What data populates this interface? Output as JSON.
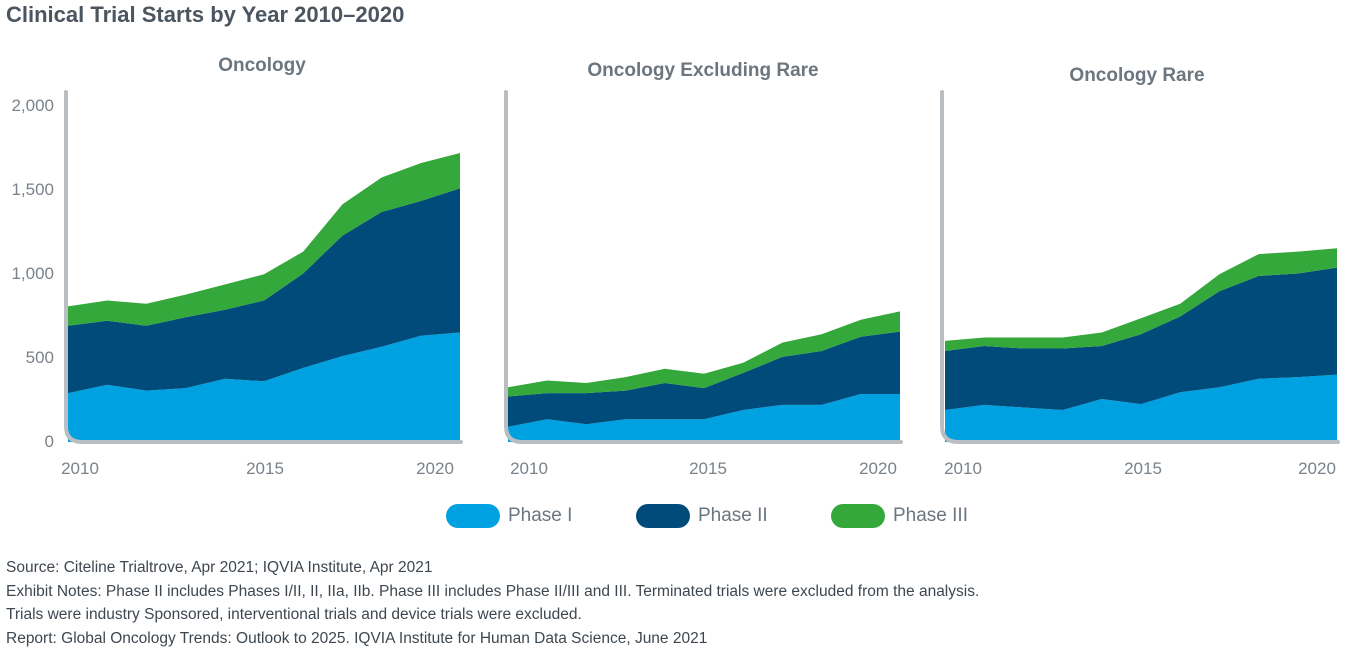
{
  "title": "Clinical Trial Starts by Year 2010–2020",
  "colors": {
    "phase1": "#00a1e0",
    "phase2": "#014b7b",
    "phase3": "#34a83a"
  },
  "legend": [
    {
      "label": "Phase I",
      "key": "phase1"
    },
    {
      "label": "Phase II",
      "key": "phase2"
    },
    {
      "label": "Phase III",
      "key": "phase3"
    }
  ],
  "y_tick_labels": [
    "2,000",
    "1,500",
    "1,000",
    "500",
    "0"
  ],
  "notes": {
    "source": "Source: Citeline Trialtrove, Apr 2021; IQVIA Institute, Apr 2021",
    "exhibit1": "Exhibit Notes: Phase II includes Phases I/II, II, IIa, IIb. Phase III includes Phase II/III and III. Terminated trials were excluded from the analysis.",
    "exhibit2": "Trials were industry Sponsored, interventional trials and device trials were excluded.",
    "report": "Report: Global Oncology Trends: Outlook to 2025. IQVIA Institute for Human Data Science, June 2021"
  },
  "chart_data": [
    {
      "type": "area",
      "stacked": true,
      "title": "Oncology",
      "x": [
        2010,
        2011,
        2012,
        2013,
        2014,
        2015,
        2016,
        2017,
        2018,
        2019,
        2020
      ],
      "x_ticks": [
        "2010",
        "2015",
        "2020"
      ],
      "ylim": [
        0,
        2000
      ],
      "y_ticks": [
        "2,000",
        "1,500",
        "1,000",
        "500",
        "0"
      ],
      "series": [
        {
          "name": "Phase I",
          "values": [
            290,
            340,
            305,
            320,
            375,
            360,
            440,
            510,
            565,
            630,
            650
          ]
        },
        {
          "name": "Phase II",
          "values": [
            400,
            380,
            385,
            420,
            410,
            480,
            560,
            715,
            800,
            800,
            855
          ]
        },
        {
          "name": "Phase III",
          "values": [
            115,
            120,
            130,
            135,
            150,
            155,
            130,
            185,
            205,
            225,
            210
          ]
        }
      ]
    },
    {
      "type": "area",
      "stacked": true,
      "title": "Oncology Excluding Rare",
      "x": [
        2010,
        2011,
        2012,
        2013,
        2014,
        2015,
        2016,
        2017,
        2018,
        2019,
        2020
      ],
      "x_ticks": [
        "2010",
        "2015",
        "2020"
      ],
      "ylim": [
        0,
        2000
      ],
      "y_ticks": [
        "2,000",
        "1,500",
        "1,000",
        "500",
        "0"
      ],
      "series": [
        {
          "name": "Phase I",
          "values": [
            90,
            135,
            105,
            135,
            135,
            135,
            190,
            220,
            220,
            285,
            285
          ]
        },
        {
          "name": "Phase II",
          "values": [
            180,
            155,
            185,
            170,
            215,
            185,
            220,
            285,
            320,
            340,
            370
          ]
        },
        {
          "name": "Phase III",
          "values": [
            55,
            75,
            60,
            80,
            85,
            85,
            60,
            85,
            100,
            100,
            120
          ]
        }
      ]
    },
    {
      "type": "area",
      "stacked": true,
      "title": "Oncology  Rare",
      "x": [
        2010,
        2011,
        2012,
        2013,
        2014,
        2015,
        2016,
        2017,
        2018,
        2019,
        2020
      ],
      "x_ticks": [
        "2010",
        "2015",
        "2020"
      ],
      "ylim": [
        0,
        2000
      ],
      "y_ticks": [
        "2,000",
        "1,500",
        "1,000",
        "500",
        "0"
      ],
      "series": [
        {
          "name": "Phase I",
          "values": [
            190,
            220,
            205,
            190,
            255,
            225,
            295,
            325,
            375,
            385,
            400
          ]
        },
        {
          "name": "Phase II",
          "values": [
            350,
            350,
            350,
            365,
            315,
            415,
            450,
            570,
            610,
            615,
            635
          ]
        },
        {
          "name": "Phase III",
          "values": [
            60,
            50,
            65,
            65,
            80,
            95,
            75,
            100,
            130,
            130,
            115
          ]
        }
      ]
    }
  ]
}
